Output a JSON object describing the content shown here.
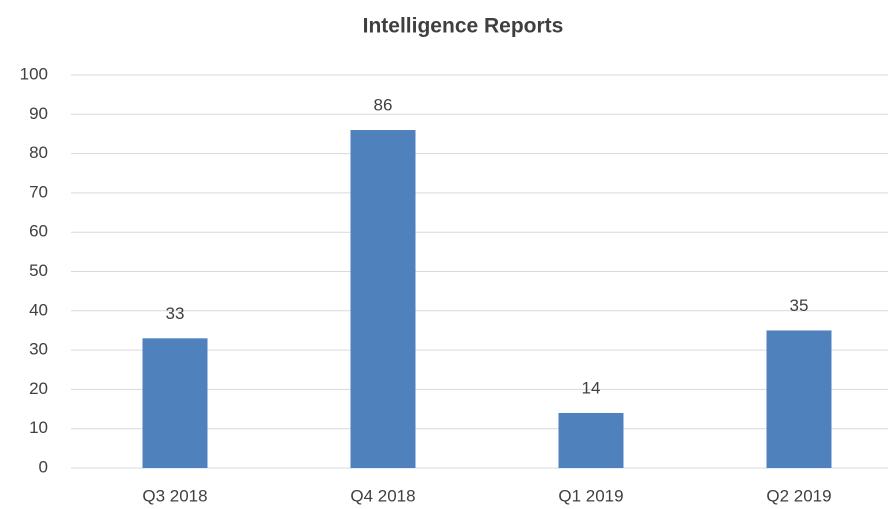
{
  "chart_data": {
    "type": "bar",
    "title": "Intelligence Reports",
    "categories": [
      "Q3 2018",
      "Q4 2018",
      "Q1 2019",
      "Q2 2019"
    ],
    "values": [
      33,
      86,
      14,
      35
    ],
    "color": "#4f81bd",
    "ylim": [
      0,
      100
    ],
    "yticks": [
      0,
      10,
      20,
      30,
      40,
      50,
      60,
      70,
      80,
      90,
      100
    ],
    "grid": true
  }
}
